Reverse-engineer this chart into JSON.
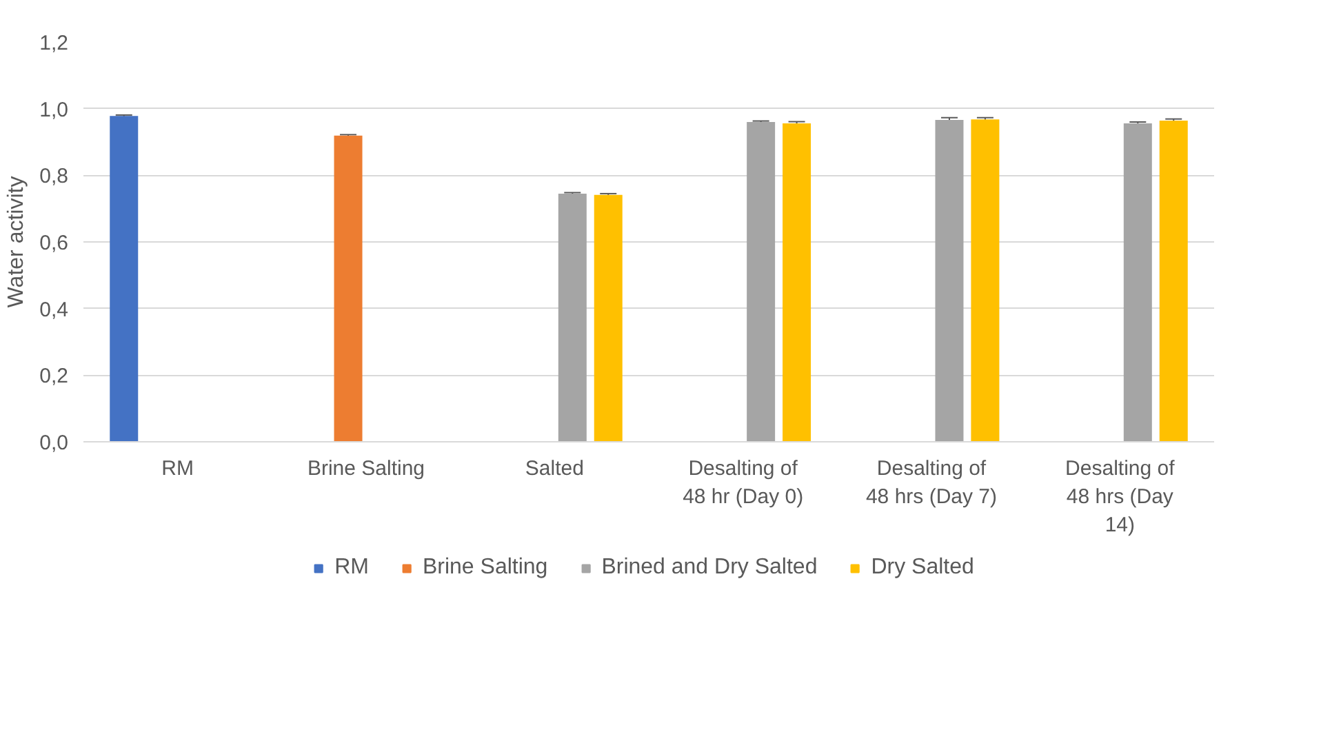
{
  "chart_data": {
    "type": "bar",
    "ylabel": "Water activity",
    "categories": [
      "RM",
      "Brine Salting",
      "Salted",
      "Desalting of 48 hr (Day 0)",
      "Desalting of 48 hrs (Day 7)",
      "Desalting of 48 hrs (Day 14)"
    ],
    "series": [
      {
        "name": "RM",
        "color": "#4472c4",
        "values": [
          0.978,
          null,
          null,
          null,
          null,
          null
        ],
        "errors": [
          0.003,
          null,
          null,
          null,
          null,
          null
        ]
      },
      {
        "name": "Brine Salting",
        "color": "#ed7d31",
        "values": [
          null,
          0.919,
          null,
          null,
          null,
          null
        ],
        "errors": [
          null,
          0.003,
          null,
          null,
          null,
          null
        ]
      },
      {
        "name": "Brined and Dry Salted",
        "color": "#a5a5a5",
        "values": [
          null,
          null,
          0.745,
          0.96,
          0.966,
          0.956
        ],
        "errors": [
          null,
          null,
          0.003,
          0.003,
          0.007,
          0.004
        ]
      },
      {
        "name": "Dry Salted",
        "color": "#ffc000",
        "values": [
          null,
          null,
          0.741,
          0.956,
          0.968,
          0.964
        ],
        "errors": [
          null,
          null,
          0.004,
          0.005,
          0.005,
          0.005
        ]
      }
    ],
    "ylim": [
      0,
      1.2
    ],
    "yticks": [
      {
        "value": 0,
        "label": "0,0"
      },
      {
        "value": 0.2,
        "label": "0,2"
      },
      {
        "value": 0.4,
        "label": "0,4"
      },
      {
        "value": 0.6,
        "label": "0,6"
      },
      {
        "value": 0.8,
        "label": "0,8"
      },
      {
        "value": 1.0,
        "label": "1,0"
      },
      {
        "value": 1.2,
        "label": "1,2"
      }
    ],
    "grid": "y",
    "legend": "bottom"
  }
}
